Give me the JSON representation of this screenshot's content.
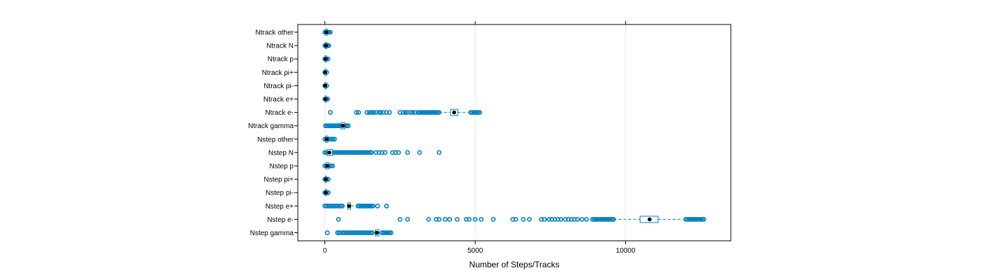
{
  "chart_data": {
    "type": "boxplot",
    "xlabel": "Number of Steps/Tracks",
    "xlim": [
      -900,
      13500
    ],
    "xticks": [
      0,
      5000,
      10000
    ],
    "grid": true,
    "colors": {
      "points": "#0080c0",
      "box": "#0080c0",
      "median": "#000000",
      "grid": "#e6e6e6",
      "frame": "#000000"
    },
    "categories": [
      "Ntrack other",
      "Ntrack N",
      "Ntrack p",
      "Ntrack pi+",
      "Ntrack pi-",
      "Ntrack e+",
      "Ntrack e-",
      "Ntrack gamma",
      "Nstep other",
      "Nstep N",
      "Nstep p",
      "Nstep pi+",
      "Nstep pi-",
      "Nstep e+",
      "Nstep e-",
      "Nstep gamma"
    ],
    "series": [
      {
        "category": "Ntrack other",
        "median": 50,
        "q1": 30,
        "q3": 80,
        "whisker_low": 0,
        "whisker_high": 180,
        "outlier_ranges": [
          [
            0,
            180
          ]
        ],
        "outliers": []
      },
      {
        "category": "Ntrack N",
        "median": 40,
        "q1": 20,
        "q3": 60,
        "whisker_low": 0,
        "whisker_high": 130,
        "outlier_ranges": [
          [
            0,
            130
          ]
        ],
        "outliers": []
      },
      {
        "category": "Ntrack p",
        "median": 25,
        "q1": 10,
        "q3": 40,
        "whisker_low": 0,
        "whisker_high": 100,
        "outlier_ranges": [
          [
            0,
            100
          ]
        ],
        "outliers": []
      },
      {
        "category": "Ntrack pi+",
        "median": 10,
        "q1": 5,
        "q3": 20,
        "whisker_low": 0,
        "whisker_high": 60,
        "outlier_ranges": [
          [
            0,
            60
          ]
        ],
        "outliers": []
      },
      {
        "category": "Ntrack pi-",
        "median": 10,
        "q1": 5,
        "q3": 20,
        "whisker_low": 0,
        "whisker_high": 60,
        "outlier_ranges": [
          [
            0,
            60
          ]
        ],
        "outliers": []
      },
      {
        "category": "Ntrack e+",
        "median": 20,
        "q1": 10,
        "q3": 35,
        "whisker_low": 0,
        "whisker_high": 90,
        "outlier_ranges": [
          [
            0,
            90
          ]
        ],
        "outliers": []
      },
      {
        "category": "Ntrack e-",
        "median": 4300,
        "q1": 4180,
        "q3": 4420,
        "whisker_low": 3800,
        "whisker_high": 4800,
        "outlier_ranges": [
          [
            3100,
            3800
          ],
          [
            4850,
            5150
          ]
        ],
        "outliers": [
          180,
          1050,
          1120,
          1400,
          1480,
          1550,
          1620,
          1700,
          1800,
          1860,
          1950,
          2050,
          2150,
          2500,
          2600,
          2680,
          2750,
          2850,
          2920,
          3000
        ]
      },
      {
        "category": "Ntrack gamma",
        "median": 600,
        "q1": 540,
        "q3": 660,
        "whisker_low": 20,
        "whisker_high": 780,
        "outlier_ranges": [
          [
            20,
            780
          ]
        ],
        "outliers": []
      },
      {
        "category": "Nstep other",
        "median": 60,
        "q1": 30,
        "q3": 100,
        "whisker_low": 0,
        "whisker_high": 320,
        "outlier_ranges": [
          [
            0,
            320
          ]
        ],
        "outliers": []
      },
      {
        "category": "Nstep N",
        "median": 150,
        "q1": 80,
        "q3": 250,
        "whisker_low": 0,
        "whisker_high": 650,
        "outlier_ranges": [
          [
            0,
            1550
          ]
        ],
        "outliers": [
          1700,
          1800,
          1900,
          2000,
          2250,
          2350,
          2450,
          2750,
          3150,
          3800
        ]
      },
      {
        "category": "Nstep p",
        "median": 80,
        "q1": 40,
        "q3": 130,
        "whisker_low": 0,
        "whisker_high": 260,
        "outlier_ranges": [
          [
            0,
            260
          ]
        ],
        "outliers": []
      },
      {
        "category": "Nstep pi+",
        "median": 30,
        "q1": 15,
        "q3": 50,
        "whisker_low": 0,
        "whisker_high": 110,
        "outlier_ranges": [
          [
            0,
            110
          ]
        ],
        "outliers": []
      },
      {
        "category": "Nstep pi-",
        "median": 30,
        "q1": 15,
        "q3": 50,
        "whisker_low": 0,
        "whisker_high": 110,
        "outlier_ranges": [
          [
            0,
            110
          ]
        ],
        "outliers": []
      },
      {
        "category": "Nstep e+",
        "median": 800,
        "q1": 760,
        "q3": 860,
        "whisker_low": 580,
        "whisker_high": 1060,
        "outlier_ranges": [
          [
            0,
            580
          ],
          [
            1100,
            1600
          ]
        ],
        "outliers": [
          1750,
          2050
        ]
      },
      {
        "category": "Nstep e-",
        "median": 10800,
        "q1": 10480,
        "q3": 11080,
        "whisker_low": 9600,
        "whisker_high": 11950,
        "outlier_ranges": [
          [
            8900,
            9600
          ],
          [
            12000,
            12600
          ]
        ],
        "outliers": [
          450,
          2500,
          2750,
          3450,
          3700,
          3800,
          4000,
          4150,
          4400,
          4700,
          4800,
          5000,
          5200,
          5600,
          6250,
          6350,
          6600,
          6800,
          7200,
          7300,
          7450,
          7550,
          7650,
          7750,
          7850,
          8000,
          8100,
          8200,
          8300,
          8400,
          8550,
          8700
        ]
      },
      {
        "category": "Nstep gamma",
        "median": 1730,
        "q1": 1680,
        "q3": 1800,
        "whisker_low": 1620,
        "whisker_high": 1850,
        "outlier_ranges": [
          [
            600,
            1580
          ],
          [
            1900,
            2200
          ]
        ],
        "outliers": [
          80,
          420,
          470,
          520
        ]
      }
    ]
  }
}
